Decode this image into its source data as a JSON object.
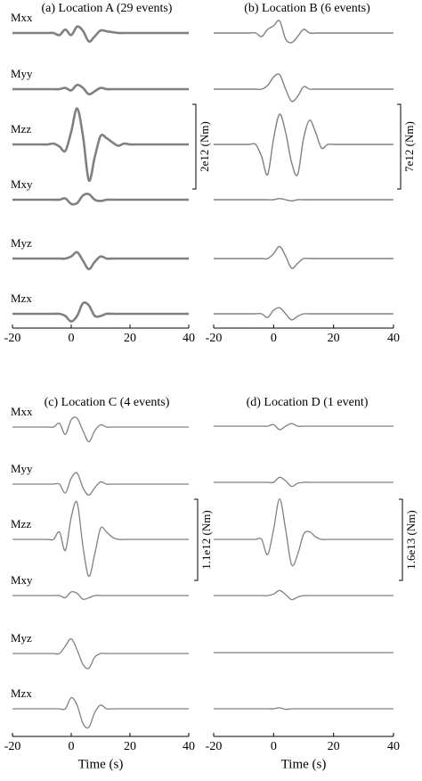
{
  "chart_data": [
    {
      "type": "line",
      "title": "(a) Location A (29 events)",
      "x": [
        -20,
        -18,
        -16,
        -14,
        -12,
        -10,
        -8,
        -6,
        -4,
        -2,
        0,
        2,
        4,
        6,
        8,
        10,
        12,
        14,
        16,
        18,
        20,
        22,
        24,
        26,
        28,
        30,
        32,
        34,
        36,
        38,
        40
      ],
      "xlim": [
        -20,
        40
      ],
      "xticks": [
        -20,
        0,
        20,
        40
      ],
      "scale_bar": {
        "value": 2000000000000.0,
        "label": "2e12 (Nm)"
      },
      "series": [
        {
          "name": "Mxx",
          "color": "#808080",
          "values": [
            0,
            0,
            0,
            0,
            0,
            0,
            0,
            0,
            -50000000000.0,
            80000000000.0,
            -50000000000.0,
            150000000000.0,
            50000000000.0,
            -200000000000.0,
            -80000000000.0,
            60000000000.0,
            40000000000.0,
            20000000000.0,
            0,
            0,
            0,
            0,
            0,
            0,
            0,
            0,
            0,
            0,
            0,
            0,
            0
          ]
        },
        {
          "name": "Myy",
          "color": "#808080",
          "values": [
            0,
            0,
            0,
            0,
            0,
            0,
            0,
            0,
            0,
            30000000000.0,
            -30000000000.0,
            100000000000.0,
            30000000000.0,
            -120000000000.0,
            -50000000000.0,
            30000000000.0,
            0,
            0,
            0,
            0,
            0,
            0,
            0,
            0,
            0,
            0,
            0,
            0,
            0,
            0,
            0
          ]
        },
        {
          "name": "Mzz",
          "color": "#808080",
          "values": [
            0,
            0,
            0,
            0,
            0,
            0,
            0,
            20000000000.0,
            -50000000000.0,
            -150000000000.0,
            300000000000.0,
            850000000000.0,
            200000000000.0,
            -850000000000.0,
            -300000000000.0,
            200000000000.0,
            150000000000.0,
            50000000000.0,
            -30000000000.0,
            20000000000.0,
            0,
            0,
            0,
            0,
            0,
            0,
            0,
            0,
            0,
            0,
            0
          ]
        },
        {
          "name": "Mxy",
          "color": "#808080",
          "values": [
            0,
            0,
            0,
            0,
            0,
            0,
            0,
            0,
            0,
            30000000000.0,
            -100000000000.0,
            -80000000000.0,
            100000000000.0,
            130000000000.0,
            0,
            -30000000000.0,
            0,
            0,
            0,
            0,
            0,
            0,
            0,
            0,
            0,
            0,
            0,
            0,
            0,
            0,
            0
          ]
        },
        {
          "name": "Myz",
          "color": "#808080",
          "values": [
            0,
            0,
            0,
            0,
            0,
            0,
            0,
            0,
            0,
            0,
            50000000000.0,
            150000000000.0,
            -50000000000.0,
            -250000000000.0,
            -80000000000.0,
            50000000000.0,
            0,
            0,
            0,
            0,
            0,
            0,
            0,
            0,
            0,
            0,
            0,
            0,
            0,
            0,
            0
          ]
        },
        {
          "name": "Mzx",
          "color": "#808080",
          "values": [
            0,
            0,
            0,
            0,
            0,
            0,
            0,
            0,
            0,
            -50000000000.0,
            -180000000000.0,
            -50000000000.0,
            250000000000.0,
            200000000000.0,
            -50000000000.0,
            -50000000000.0,
            0,
            0,
            0,
            0,
            0,
            0,
            0,
            0,
            0,
            0,
            0,
            0,
            0,
            0,
            0
          ]
        }
      ]
    },
    {
      "type": "line",
      "title": "(b) Location B (6 events)",
      "x": [
        -20,
        -18,
        -16,
        -14,
        -12,
        -10,
        -8,
        -6,
        -4,
        -2,
        0,
        2,
        4,
        6,
        8,
        10,
        12,
        14,
        16,
        18,
        20,
        22,
        24,
        26,
        28,
        30,
        32,
        34,
        36,
        38,
        40
      ],
      "xlim": [
        -20,
        40
      ],
      "xticks": [
        -20,
        0,
        20,
        40
      ],
      "scale_bar": {
        "value": 7000000000000.0,
        "label": "7e12 (Nm)"
      },
      "series": [
        {
          "color": "#808080",
          "values": [
            0,
            0,
            0,
            0,
            0,
            0,
            0,
            0,
            -300000000000.0,
            300000000000.0,
            600000000000.0,
            1000000000000.0,
            -500000000000.0,
            -800000000000.0,
            -300000000000.0,
            300000000000.0,
            0,
            0,
            0,
            0,
            0,
            0,
            0,
            0,
            0,
            0,
            0,
            0,
            0,
            0,
            0
          ]
        },
        {
          "color": "#808080",
          "values": [
            0,
            0,
            0,
            0,
            0,
            0,
            0,
            0,
            0,
            300000000000.0,
            1000000000000.0,
            1200000000000.0,
            0,
            -1000000000000.0,
            -600000000000.0,
            200000000000.0,
            0,
            0,
            0,
            0,
            0,
            0,
            0,
            0,
            0,
            0,
            0,
            0,
            0,
            0,
            0
          ]
        },
        {
          "color": "#808080",
          "values": [
            0,
            0,
            0,
            0,
            0,
            0,
            0,
            0,
            -1000000000000.0,
            -2500000000000.0,
            500000000000.0,
            2500000000000.0,
            1000000000000.0,
            -1500000000000.0,
            -2500000000000.0,
            500000000000.0,
            2000000000000.0,
            1000000000000.0,
            -300000000000.0,
            0,
            0,
            0,
            0,
            0,
            0,
            0,
            0,
            0,
            0,
            0,
            0
          ]
        },
        {
          "color": "#808080",
          "values": [
            0,
            0,
            0,
            0,
            0,
            0,
            0,
            0,
            0,
            0,
            0,
            100000000000.0,
            0,
            -100000000000.0,
            0,
            0,
            0,
            0,
            0,
            0,
            0,
            0,
            0,
            0,
            0,
            0,
            0,
            0,
            0,
            0,
            0
          ]
        },
        {
          "color": "#808080",
          "values": [
            0,
            0,
            0,
            0,
            0,
            0,
            0,
            0,
            0,
            0,
            400000000000.0,
            1000000000000.0,
            200000000000.0,
            -800000000000.0,
            -400000000000.0,
            0,
            0,
            0,
            0,
            0,
            0,
            0,
            0,
            0,
            0,
            0,
            0,
            0,
            0,
            0,
            0
          ]
        },
        {
          "color": "#808080",
          "values": [
            0,
            0,
            0,
            0,
            0,
            0,
            0,
            0,
            0,
            -300000000000.0,
            300000000000.0,
            500000000000.0,
            0,
            -500000000000.0,
            -200000000000.0,
            0,
            0,
            0,
            0,
            0,
            0,
            0,
            0,
            0,
            0,
            0,
            0,
            0,
            0,
            0,
            0
          ]
        }
      ]
    },
    {
      "type": "line",
      "title": "(c) Location C (4 events)",
      "xlabel": "Time (s)",
      "x": [
        -20,
        -18,
        -16,
        -14,
        -12,
        -10,
        -8,
        -6,
        -4,
        -2,
        0,
        2,
        4,
        6,
        8,
        10,
        12,
        14,
        16,
        18,
        20,
        22,
        24,
        26,
        28,
        30,
        32,
        34,
        36,
        38,
        40
      ],
      "xlim": [
        -20,
        40
      ],
      "xticks": [
        -20,
        0,
        20,
        40
      ],
      "scale_bar": {
        "value": 1100000000000.0,
        "label": "1.1e12 (Nm)"
      },
      "series": [
        {
          "name": "Mxx",
          "color": "#808080",
          "values": [
            0,
            0,
            0,
            0,
            0,
            0,
            0,
            0,
            50000000000.0,
            -100000000000.0,
            100000000000.0,
            120000000000.0,
            -50000000000.0,
            -200000000000.0,
            -50000000000.0,
            30000000000.0,
            0,
            0,
            0,
            0,
            0,
            0,
            0,
            0,
            0,
            0,
            0,
            0,
            0,
            0,
            0
          ]
        },
        {
          "name": "Myy",
          "color": "#808080",
          "values": [
            0,
            0,
            0,
            0,
            0,
            0,
            0,
            0,
            0,
            -120000000000.0,
            80000000000.0,
            150000000000.0,
            -50000000000.0,
            -150000000000.0,
            -50000000000.0,
            30000000000.0,
            0,
            0,
            0,
            0,
            0,
            0,
            0,
            0,
            0,
            0,
            0,
            0,
            0,
            0,
            0
          ]
        },
        {
          "name": "Mzz",
          "color": "#808080",
          "values": [
            0,
            0,
            0,
            0,
            0,
            0,
            0,
            0,
            100000000000.0,
            -150000000000.0,
            300000000000.0,
            500000000000.0,
            -100000000000.0,
            -500000000000.0,
            -200000000000.0,
            150000000000.0,
            100000000000.0,
            30000000000.0,
            0,
            0,
            0,
            0,
            0,
            0,
            0,
            0,
            0,
            0,
            0,
            0,
            0
          ]
        },
        {
          "name": "Mxy",
          "color": "#808080",
          "values": [
            0,
            0,
            0,
            0,
            0,
            0,
            0,
            0,
            0,
            -30000000000.0,
            50000000000.0,
            30000000000.0,
            -50000000000.0,
            -30000000000.0,
            0,
            0,
            0,
            0,
            0,
            0,
            0,
            0,
            0,
            0,
            0,
            0,
            0,
            0,
            0,
            0,
            0
          ]
        },
        {
          "name": "Myz",
          "color": "#808080",
          "values": [
            0,
            0,
            0,
            0,
            0,
            0,
            0,
            0,
            0,
            100000000000.0,
            200000000000.0,
            50000000000.0,
            -150000000000.0,
            -200000000000.0,
            -50000000000.0,
            0,
            0,
            0,
            0,
            0,
            0,
            0,
            0,
            0,
            0,
            0,
            0,
            0,
            0,
            0,
            0
          ]
        },
        {
          "name": "Mzx",
          "color": "#808080",
          "values": [
            0,
            0,
            0,
            0,
            0,
            0,
            0,
            0,
            0,
            0,
            150000000000.0,
            50000000000.0,
            -200000000000.0,
            -250000000000.0,
            -50000000000.0,
            50000000000.0,
            0,
            0,
            0,
            0,
            0,
            0,
            0,
            0,
            0,
            0,
            0,
            0,
            0,
            0,
            0
          ]
        }
      ]
    },
    {
      "type": "line",
      "title": "(d) Location D (1 event)",
      "xlabel": "Time (s)",
      "x": [
        -20,
        -18,
        -16,
        -14,
        -12,
        -10,
        -8,
        -6,
        -4,
        -2,
        0,
        2,
        4,
        6,
        8,
        10,
        12,
        14,
        16,
        18,
        20,
        22,
        24,
        26,
        28,
        30,
        32,
        34,
        36,
        38,
        40
      ],
      "xlim": [
        -20,
        40
      ],
      "xticks": [
        -20,
        0,
        20,
        40
      ],
      "scale_bar": {
        "value": 16000000000000.0,
        "label": "1.6e13 (Nm)"
      },
      "series": [
        {
          "color": "#808080",
          "values": [
            0,
            0,
            0,
            0,
            0,
            0,
            0,
            0,
            0,
            0,
            300000000000.0,
            -700000000000.0,
            0,
            500000000000.0,
            0,
            0,
            0,
            0,
            0,
            0,
            0,
            0,
            0,
            0,
            0,
            0,
            0,
            0,
            0,
            0,
            0
          ]
        },
        {
          "color": "#808080",
          "values": [
            0,
            0,
            0,
            0,
            0,
            0,
            0,
            0,
            0,
            0,
            0,
            1000000000000.0,
            300000000000.0,
            -800000000000.0,
            -200000000000.0,
            0,
            0,
            0,
            0,
            0,
            0,
            0,
            0,
            0,
            0,
            0,
            0,
            0,
            0,
            0,
            0
          ]
        },
        {
          "color": "#808080",
          "values": [
            0,
            0,
            0,
            0,
            0,
            0,
            0,
            0,
            0,
            -3000000000000.0,
            2000000000000.0,
            8000000000000.0,
            2000000000000.0,
            -5000000000000.0,
            -3000000000000.0,
            1000000000000.0,
            1500000000000.0,
            500000000000.0,
            0,
            0,
            0,
            0,
            0,
            0,
            0,
            0,
            0,
            0,
            0,
            0,
            0
          ]
        },
        {
          "color": "#808080",
          "values": [
            0,
            0,
            0,
            0,
            0,
            0,
            0,
            0,
            0,
            0,
            300000000000.0,
            1000000000000.0,
            200000000000.0,
            -800000000000.0,
            -300000000000.0,
            0,
            0,
            0,
            0,
            0,
            0,
            0,
            0,
            0,
            0,
            0,
            0,
            0,
            0,
            0,
            0
          ]
        },
        {
          "color": "#808080",
          "values": [
            0,
            0,
            0,
            0,
            0,
            0,
            0,
            0,
            0,
            0,
            0,
            0,
            0,
            0,
            0,
            0,
            0,
            0,
            0,
            0,
            0,
            0,
            0,
            0,
            0,
            0,
            0,
            0,
            0,
            0,
            0
          ]
        },
        {
          "color": "#808080",
          "values": [
            0,
            0,
            0,
            0,
            0,
            0,
            0,
            0,
            0,
            0,
            0,
            200000000000.0,
            -100000000000.0,
            0,
            0,
            0,
            0,
            0,
            0,
            0,
            0,
            0,
            0,
            0,
            0,
            0,
            0,
            0,
            0,
            0,
            0
          ]
        }
      ]
    }
  ]
}
